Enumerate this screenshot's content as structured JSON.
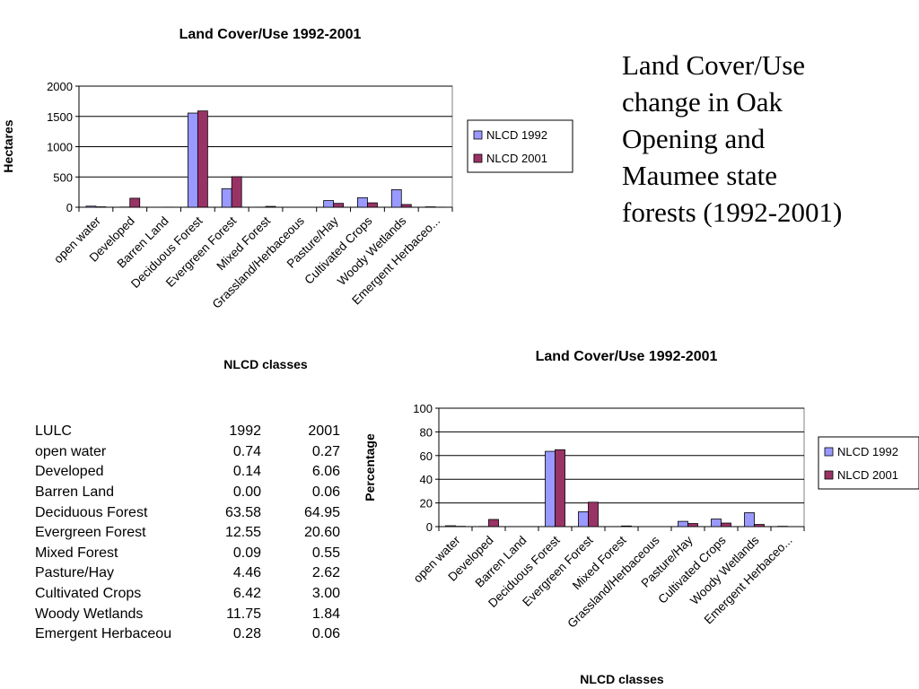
{
  "slide": {
    "title_lines": [
      "Land Cover/Use",
      "change in Oak",
      "Opening and",
      "Maumee state",
      "forests (1992-2001)"
    ]
  },
  "colors": {
    "series_1992": "#9999ff",
    "series_2001": "#993366"
  },
  "chart_data": [
    {
      "type": "bar",
      "title": "Land Cover/Use 1992-2001",
      "xlabel": "NLCD classes",
      "ylabel": "Hectares",
      "ylim": [
        0,
        2000
      ],
      "yticks": [
        "0",
        "500",
        "1000",
        "1500",
        "2000"
      ],
      "grid": "horizontal",
      "legend": "right",
      "categories": [
        "open water",
        "Developed",
        "Barren Land",
        "Deciduous Forest",
        "Evergreen Forest",
        "Mixed Forest",
        "Grassland/Herbaceous",
        "Pasture/Hay",
        "Cultivated Crops",
        "Woody Wetlands",
        "Emergent Herbaceo..."
      ],
      "series": [
        {
          "name": "NLCD 1992",
          "values": [
            18,
            3,
            0,
            1555,
            307,
            2,
            0,
            110,
            158,
            290,
            7
          ]
        },
        {
          "name": "NLCD 2001",
          "values": [
            7,
            149,
            2,
            1590,
            504,
            14,
            0,
            64,
            73,
            45,
            2
          ]
        }
      ]
    },
    {
      "type": "bar",
      "title": "Land Cover/Use 1992-2001",
      "xlabel": "NLCD classes",
      "ylabel": "Percentage",
      "ylim": [
        0,
        100
      ],
      "yticks": [
        "0",
        "20",
        "40",
        "60",
        "80",
        "100"
      ],
      "grid": "horizontal",
      "legend": "right",
      "categories": [
        "open water",
        "Developed",
        "Barren Land",
        "Deciduous Forest",
        "Evergreen Forest",
        "Mixed Forest",
        "Grassland/Herbaceous",
        "Pasture/Hay",
        "Cultivated Crops",
        "Woody Wetlands",
        "Emergent Herbaceo..."
      ],
      "series": [
        {
          "name": "NLCD 1992",
          "values": [
            0.74,
            0.14,
            0.0,
            63.58,
            12.55,
            0.09,
            0,
            4.46,
            6.42,
            11.75,
            0.28
          ]
        },
        {
          "name": "NLCD 2001",
          "values": [
            0.27,
            6.06,
            0.06,
            64.95,
            20.6,
            0.55,
            0,
            2.62,
            3.0,
            1.84,
            0.06
          ]
        }
      ]
    }
  ],
  "table": {
    "header": [
      "LULC",
      "1992",
      "2001"
    ],
    "rows": [
      [
        "open water",
        "0.74",
        "0.27"
      ],
      [
        "Developed",
        "0.14",
        "6.06"
      ],
      [
        "Barren Land",
        "0.00",
        "0.06"
      ],
      [
        "Deciduous Forest",
        "63.58",
        "64.95"
      ],
      [
        "Evergreen Forest",
        "12.55",
        "20.60"
      ],
      [
        "Mixed Forest",
        "0.09",
        "0.55"
      ],
      [
        "Pasture/Hay",
        "4.46",
        "2.62"
      ],
      [
        "Cultivated Crops",
        "6.42",
        "3.00"
      ],
      [
        "Woody Wetlands",
        "11.75",
        "1.84"
      ],
      [
        "Emergent Herbaceou",
        "0.28",
        "0.06"
      ]
    ]
  }
}
